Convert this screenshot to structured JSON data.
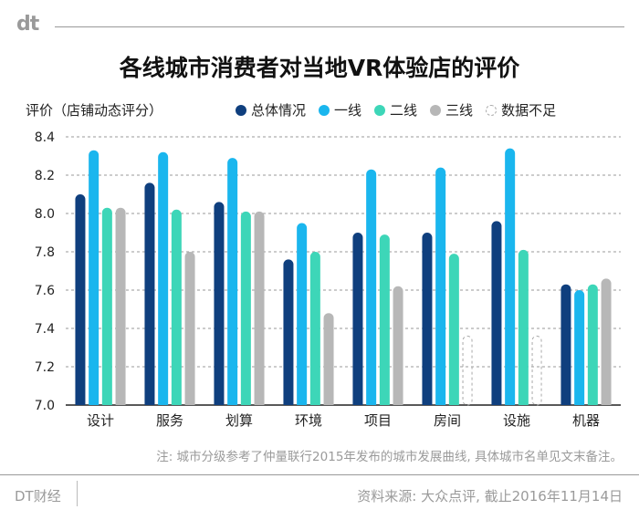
{
  "logo": "dt",
  "footer": {
    "brand": "DT财经",
    "source": "资料来源: 大众点评, 截止2016年11月14日"
  },
  "note": "注: 城市分级参考了仲量联行2015年发布的城市发展曲线, 具体城市名单见文末备注。",
  "chart_data": {
    "type": "bar",
    "title": "各线城市消费者对当地VR体验店的评价",
    "ylabel": "评价（店铺动态评分）",
    "ylim": [
      7.0,
      8.4
    ],
    "yticks": [
      "8.4",
      "8.2",
      "8.0",
      "7.8",
      "7.6",
      "7.4",
      "7.2",
      "7.0"
    ],
    "grid": true,
    "legend_position": "top",
    "categories": [
      "设计",
      "服务",
      "划算",
      "环境",
      "项目",
      "房间",
      "设施",
      "机器"
    ],
    "series": [
      {
        "name": "总体情况",
        "color": "#0f3f7e",
        "values": [
          8.1,
          8.16,
          8.06,
          7.76,
          7.9,
          7.9,
          7.96,
          7.63
        ]
      },
      {
        "name": "一线",
        "color": "#1ab6ee",
        "values": [
          8.33,
          8.32,
          8.29,
          7.95,
          8.23,
          8.24,
          8.34,
          7.6
        ]
      },
      {
        "name": "二线",
        "color": "#3dd6b8",
        "values": [
          8.03,
          8.02,
          8.01,
          7.8,
          7.89,
          7.79,
          7.81,
          7.63
        ]
      },
      {
        "name": "三线",
        "color": "#b7b7b7",
        "values": [
          8.03,
          7.8,
          8.01,
          7.48,
          7.62,
          null,
          null,
          7.66
        ]
      }
    ],
    "missing_label": "数据不足",
    "missing_color": "#aaaaaa"
  }
}
